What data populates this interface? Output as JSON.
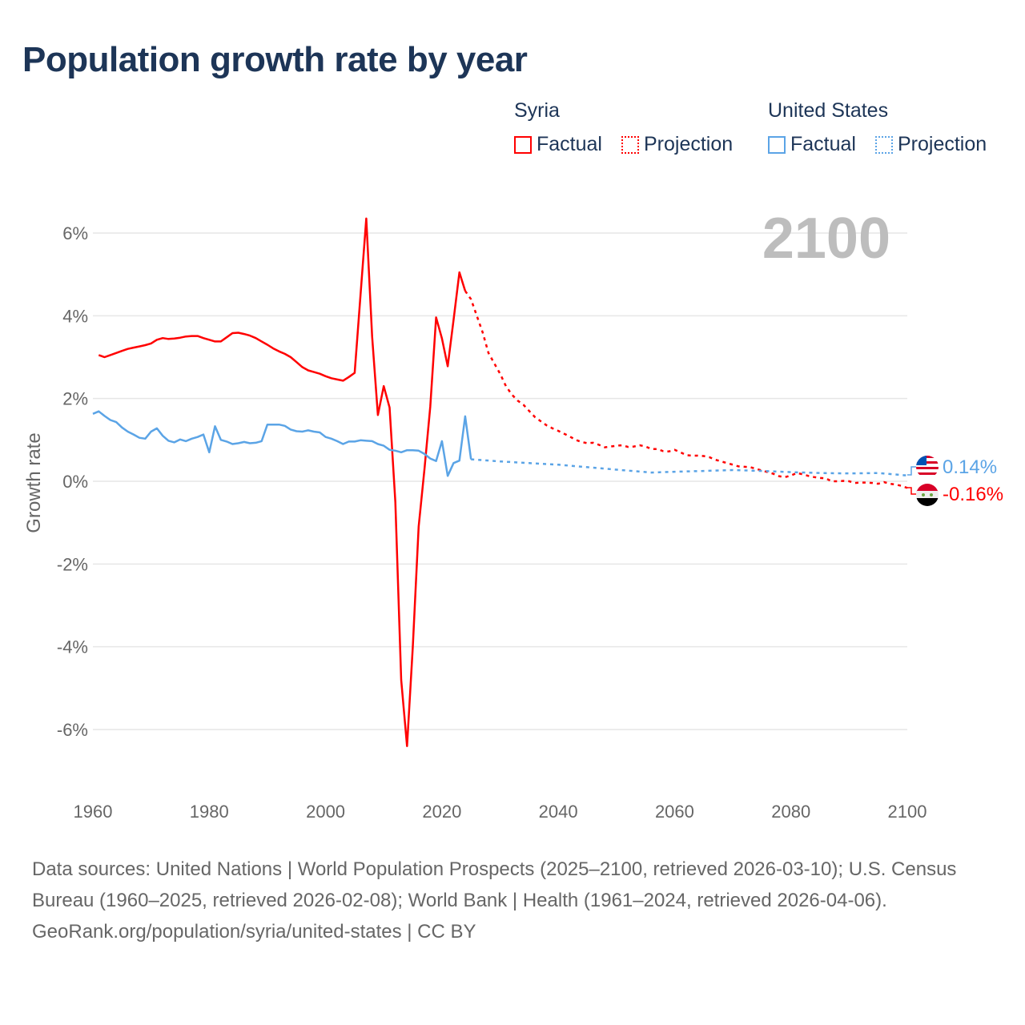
{
  "title": "Population growth rate by year",
  "legend": {
    "groups": [
      {
        "name": "Syria",
        "factual": "Factual",
        "projection": "Projection",
        "color": "#ff0000"
      },
      {
        "name": "United States",
        "factual": "Factual",
        "projection": "Projection",
        "color": "#5ba4e6"
      }
    ]
  },
  "year_label": "2100",
  "footer": {
    "sources": "Data sources: United Nations | World Population Prospects (2025–2100, retrieved 2026-03-10); U.S. Census Bureau (1960–2025, retrieved 2026-02-08); World Bank | Health (1961–2024, retrieved 2026-04-06).",
    "link": "GeoRank.org/population/syria/united-states | CC BY"
  },
  "chart_data": {
    "type": "line",
    "title": "Population growth rate by year",
    "xlabel": "",
    "ylabel": "Growth rate",
    "xlim": [
      1960,
      2100
    ],
    "ylim": [
      -7,
      7
    ],
    "xticks": [
      {
        "v": 1960,
        "label": "1960"
      },
      {
        "v": 1980,
        "label": "1980"
      },
      {
        "v": 2000,
        "label": "2000"
      },
      {
        "v": 2020,
        "label": "2020"
      },
      {
        "v": 2040,
        "label": "2040"
      },
      {
        "v": 2060,
        "label": "2060"
      },
      {
        "v": 2080,
        "label": "2080"
      },
      {
        "v": 2100,
        "label": "2100"
      }
    ],
    "yticks": [
      {
        "v": 6,
        "label": "6%"
      },
      {
        "v": 4,
        "label": "4%"
      },
      {
        "v": 2,
        "label": "2%"
      },
      {
        "v": 0,
        "label": "0%"
      },
      {
        "v": -2,
        "label": "-2%"
      },
      {
        "v": -4,
        "label": "-4%"
      },
      {
        "v": -6,
        "label": "-6%"
      }
    ],
    "grid": true,
    "legend_position": "top-right",
    "series": [
      {
        "name": "Syria",
        "color": "#ff0000",
        "end_label": "-0.16%",
        "factual": [
          [
            1961,
            3.05
          ],
          [
            1962,
            3.0
          ],
          [
            1963,
            3.05
          ],
          [
            1964,
            3.1
          ],
          [
            1965,
            3.15
          ],
          [
            1966,
            3.2
          ],
          [
            1967,
            3.23
          ],
          [
            1968,
            3.26
          ],
          [
            1969,
            3.29
          ],
          [
            1970,
            3.33
          ],
          [
            1971,
            3.42
          ],
          [
            1972,
            3.46
          ],
          [
            1973,
            3.44
          ],
          [
            1974,
            3.45
          ],
          [
            1975,
            3.47
          ],
          [
            1976,
            3.5
          ],
          [
            1977,
            3.51
          ],
          [
            1978,
            3.51
          ],
          [
            1979,
            3.46
          ],
          [
            1980,
            3.42
          ],
          [
            1981,
            3.38
          ],
          [
            1982,
            3.38
          ],
          [
            1983,
            3.48
          ],
          [
            1984,
            3.58
          ],
          [
            1985,
            3.59
          ],
          [
            1986,
            3.56
          ],
          [
            1987,
            3.52
          ],
          [
            1988,
            3.46
          ],
          [
            1989,
            3.38
          ],
          [
            1990,
            3.3
          ],
          [
            1991,
            3.21
          ],
          [
            1992,
            3.14
          ],
          [
            1993,
            3.08
          ],
          [
            1994,
            3.0
          ],
          [
            1995,
            2.88
          ],
          [
            1996,
            2.76
          ],
          [
            1997,
            2.68
          ],
          [
            1998,
            2.64
          ],
          [
            1999,
            2.6
          ],
          [
            2000,
            2.54
          ],
          [
            2001,
            2.49
          ],
          [
            2002,
            2.46
          ],
          [
            2003,
            2.43
          ],
          [
            2004,
            2.52
          ],
          [
            2005,
            2.62
          ],
          [
            2006,
            4.5
          ],
          [
            2007,
            6.35
          ],
          [
            2008,
            3.5
          ],
          [
            2009,
            1.6
          ],
          [
            2010,
            2.3
          ],
          [
            2011,
            1.78
          ],
          [
            2012,
            -0.5
          ],
          [
            2013,
            -4.8
          ],
          [
            2014,
            -6.4
          ],
          [
            2015,
            -4.0
          ],
          [
            2016,
            -1.1
          ],
          [
            2017,
            0.3
          ],
          [
            2018,
            1.8
          ],
          [
            2019,
            3.96
          ],
          [
            2020,
            3.45
          ],
          [
            2021,
            2.78
          ],
          [
            2022,
            3.9
          ],
          [
            2023,
            5.05
          ],
          [
            2024,
            4.6
          ]
        ],
        "projection": [
          [
            2024,
            4.6
          ],
          [
            2025,
            4.4
          ],
          [
            2026,
            4.0
          ],
          [
            2027,
            3.6
          ],
          [
            2028,
            3.1
          ],
          [
            2029,
            2.85
          ],
          [
            2030,
            2.6
          ],
          [
            2031,
            2.3
          ],
          [
            2032,
            2.1
          ],
          [
            2033,
            1.95
          ],
          [
            2034,
            1.85
          ],
          [
            2035,
            1.7
          ],
          [
            2036,
            1.55
          ],
          [
            2037,
            1.45
          ],
          [
            2038,
            1.35
          ],
          [
            2039,
            1.28
          ],
          [
            2040,
            1.22
          ],
          [
            2041,
            1.15
          ],
          [
            2042,
            1.08
          ],
          [
            2043,
            1.0
          ],
          [
            2044,
            0.95
          ],
          [
            2045,
            0.92
          ],
          [
            2046,
            0.93
          ],
          [
            2047,
            0.88
          ],
          [
            2048,
            0.82
          ],
          [
            2049,
            0.84
          ],
          [
            2050,
            0.86
          ],
          [
            2051,
            0.87
          ],
          [
            2052,
            0.83
          ],
          [
            2053,
            0.84
          ],
          [
            2054,
            0.87
          ],
          [
            2055,
            0.84
          ],
          [
            2056,
            0.78
          ],
          [
            2057,
            0.78
          ],
          [
            2058,
            0.73
          ],
          [
            2059,
            0.72
          ],
          [
            2060,
            0.76
          ],
          [
            2061,
            0.7
          ],
          [
            2062,
            0.63
          ],
          [
            2063,
            0.62
          ],
          [
            2064,
            0.62
          ],
          [
            2065,
            0.61
          ],
          [
            2066,
            0.58
          ],
          [
            2067,
            0.52
          ],
          [
            2068,
            0.48
          ],
          [
            2069,
            0.44
          ],
          [
            2070,
            0.4
          ],
          [
            2071,
            0.36
          ],
          [
            2072,
            0.35
          ],
          [
            2073,
            0.34
          ],
          [
            2074,
            0.3
          ],
          [
            2075,
            0.26
          ],
          [
            2076,
            0.22
          ],
          [
            2077,
            0.18
          ],
          [
            2078,
            0.12
          ],
          [
            2079,
            0.1
          ],
          [
            2080,
            0.14
          ],
          [
            2081,
            0.2
          ],
          [
            2082,
            0.17
          ],
          [
            2083,
            0.13
          ],
          [
            2084,
            0.1
          ],
          [
            2085,
            0.08
          ],
          [
            2086,
            0.07
          ],
          [
            2087,
            0.0
          ],
          [
            2088,
            0.0
          ],
          [
            2089,
            0.01
          ],
          [
            2090,
            0.0
          ],
          [
            2091,
            -0.04
          ],
          [
            2092,
            -0.03
          ],
          [
            2093,
            -0.03
          ],
          [
            2094,
            -0.04
          ],
          [
            2095,
            -0.06
          ],
          [
            2096,
            -0.02
          ],
          [
            2097,
            -0.06
          ],
          [
            2098,
            -0.08
          ],
          [
            2099,
            -0.11
          ],
          [
            2100,
            -0.16
          ]
        ]
      },
      {
        "name": "United States",
        "color": "#5ba4e6",
        "end_label": "0.14%",
        "factual": [
          [
            1960,
            1.63
          ],
          [
            1961,
            1.69
          ],
          [
            1962,
            1.58
          ],
          [
            1963,
            1.48
          ],
          [
            1964,
            1.43
          ],
          [
            1965,
            1.3
          ],
          [
            1966,
            1.2
          ],
          [
            1967,
            1.13
          ],
          [
            1968,
            1.05
          ],
          [
            1969,
            1.03
          ],
          [
            1970,
            1.2
          ],
          [
            1971,
            1.28
          ],
          [
            1972,
            1.1
          ],
          [
            1973,
            0.98
          ],
          [
            1974,
            0.94
          ],
          [
            1975,
            1.01
          ],
          [
            1976,
            0.97
          ],
          [
            1977,
            1.03
          ],
          [
            1978,
            1.07
          ],
          [
            1979,
            1.13
          ],
          [
            1980,
            0.7
          ],
          [
            1981,
            1.33
          ],
          [
            1982,
            1.0
          ],
          [
            1983,
            0.96
          ],
          [
            1984,
            0.9
          ],
          [
            1985,
            0.92
          ],
          [
            1986,
            0.95
          ],
          [
            1987,
            0.92
          ],
          [
            1988,
            0.93
          ],
          [
            1989,
            0.97
          ],
          [
            1990,
            1.37
          ],
          [
            1991,
            1.37
          ],
          [
            1992,
            1.37
          ],
          [
            1993,
            1.34
          ],
          [
            1994,
            1.25
          ],
          [
            1995,
            1.21
          ],
          [
            1996,
            1.2
          ],
          [
            1997,
            1.23
          ],
          [
            1998,
            1.2
          ],
          [
            1999,
            1.18
          ],
          [
            2000,
            1.07
          ],
          [
            2001,
            1.03
          ],
          [
            2002,
            0.97
          ],
          [
            2003,
            0.9
          ],
          [
            2004,
            0.96
          ],
          [
            2005,
            0.96
          ],
          [
            2006,
            0.99
          ],
          [
            2007,
            0.98
          ],
          [
            2008,
            0.97
          ],
          [
            2009,
            0.9
          ],
          [
            2010,
            0.86
          ],
          [
            2011,
            0.76
          ],
          [
            2012,
            0.74
          ],
          [
            2013,
            0.7
          ],
          [
            2014,
            0.75
          ],
          [
            2015,
            0.75
          ],
          [
            2016,
            0.74
          ],
          [
            2017,
            0.66
          ],
          [
            2018,
            0.55
          ],
          [
            2019,
            0.49
          ],
          [
            2020,
            0.97
          ],
          [
            2021,
            0.13
          ],
          [
            2022,
            0.44
          ],
          [
            2023,
            0.5
          ],
          [
            2024,
            1.57
          ],
          [
            2025,
            0.53
          ]
        ],
        "projection": [
          [
            2025,
            0.53
          ],
          [
            2030,
            0.48
          ],
          [
            2035,
            0.44
          ],
          [
            2040,
            0.4
          ],
          [
            2045,
            0.34
          ],
          [
            2050,
            0.28
          ],
          [
            2056,
            0.21
          ],
          [
            2060,
            0.23
          ],
          [
            2065,
            0.25
          ],
          [
            2070,
            0.27
          ],
          [
            2075,
            0.25
          ],
          [
            2080,
            0.22
          ],
          [
            2085,
            0.2
          ],
          [
            2090,
            0.19
          ],
          [
            2095,
            0.2
          ],
          [
            2100,
            0.14
          ]
        ]
      }
    ]
  }
}
